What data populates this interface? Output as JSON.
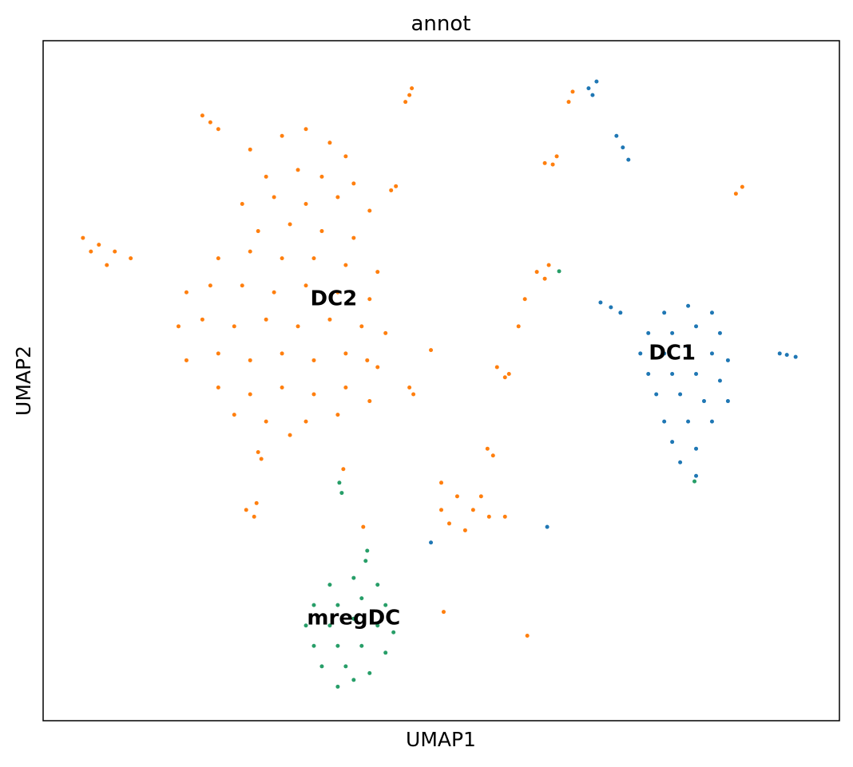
{
  "chart_data": {
    "type": "scatter",
    "title": "annot",
    "x_label": "UMAP1",
    "y_label": "UMAP2",
    "xlim": [
      0,
      100
    ],
    "ylim": [
      0,
      100
    ],
    "legend": "on data",
    "series": [
      {
        "name": "DC1",
        "color": "#1f77b4",
        "x": [
          78,
          81,
          84,
          76,
          79,
          82,
          85,
          75,
          78,
          81,
          84,
          86,
          76,
          79,
          82,
          85,
          77,
          80,
          83,
          86,
          78,
          81,
          84,
          79,
          82,
          80,
          82,
          70,
          71.3,
          72.5,
          92.5,
          93.4,
          94.5,
          72,
          72.8,
          73.5,
          68.5,
          69.5,
          69,
          63.3,
          48.7
        ],
        "values": [
          60,
          61,
          60,
          57,
          57,
          58,
          57,
          54,
          54,
          55,
          54,
          53,
          51,
          51,
          51,
          50,
          48,
          48,
          47,
          47,
          44,
          44,
          44,
          41,
          40,
          38,
          36,
          61.5,
          60.8,
          60,
          54,
          53.8,
          53.5,
          86,
          84.3,
          82.5,
          93,
          94,
          92,
          28.5,
          26.2
        ]
      },
      {
        "name": "DC2",
        "color": "#ff7f0e",
        "x": [
          26,
          30,
          33,
          36,
          38,
          28,
          32,
          35,
          39,
          25,
          29,
          33,
          37,
          41,
          27,
          31,
          35,
          39,
          22,
          26,
          30,
          34,
          38,
          42,
          18,
          21,
          25,
          29,
          33,
          37,
          41,
          17,
          20,
          24,
          28,
          32,
          36,
          40,
          43,
          18,
          22,
          26,
          30,
          34,
          38,
          42,
          22,
          26,
          30,
          34,
          38,
          41,
          24,
          28,
          33,
          37,
          31,
          5,
          7,
          9,
          11,
          8,
          6,
          21,
          22,
          20,
          46,
          45.5,
          46.3,
          43.7,
          44.3,
          63,
          64.5,
          64,
          66,
          66.5,
          62,
          63.5,
          63,
          57,
          58.5,
          58,
          40.7,
          46,
          46.5,
          48.7,
          27,
          27.4,
          25.5,
          26.5,
          26.8,
          37.7,
          40.2,
          50,
          52,
          54,
          56,
          51,
          55,
          58,
          53,
          50,
          55.8,
          56.5,
          87,
          87.8,
          50.3,
          60.8,
          59.7,
          60.5
        ],
        "values": [
          84,
          86,
          87,
          85,
          83,
          80,
          81,
          80,
          79,
          76,
          77,
          76,
          77,
          75,
          72,
          73,
          72,
          71,
          68,
          69,
          68,
          68,
          67,
          66,
          63,
          64,
          64,
          63,
          64,
          63,
          62,
          58,
          59,
          58,
          59,
          58,
          59,
          58,
          57,
          53,
          54,
          53,
          54,
          53,
          54,
          52,
          49,
          48,
          49,
          48,
          49,
          47,
          45,
          44,
          44,
          45,
          42,
          71,
          70,
          69,
          68,
          67,
          69,
          88,
          87,
          89,
          92,
          91,
          93,
          78,
          78.6,
          82,
          83,
          81.8,
          91,
          92.5,
          66,
          67,
          65,
          52,
          51,
          50.5,
          53,
          49,
          48,
          54.5,
          39.5,
          38.5,
          31,
          30,
          32,
          37,
          28.5,
          35,
          33,
          31,
          30,
          29,
          33,
          30,
          28,
          31,
          40,
          39,
          77.5,
          78.5,
          16,
          12.5,
          58,
          62
        ]
      },
      {
        "name": "mregDC",
        "color": "#279e68",
        "x": [
          36,
          39,
          42,
          34,
          37,
          40,
          43,
          33,
          36,
          39,
          42,
          44,
          34,
          37,
          40,
          43,
          35,
          38,
          41,
          37,
          39,
          40.7,
          40.5,
          37.2,
          37.5,
          64.8,
          81.8
        ],
        "values": [
          20,
          21,
          20,
          17,
          17,
          18,
          17,
          14,
          14,
          15,
          14,
          13,
          11,
          11,
          11,
          10,
          8,
          8,
          7,
          5,
          6,
          25,
          23.5,
          35,
          33.5,
          66.1,
          35.2
        ]
      }
    ]
  }
}
